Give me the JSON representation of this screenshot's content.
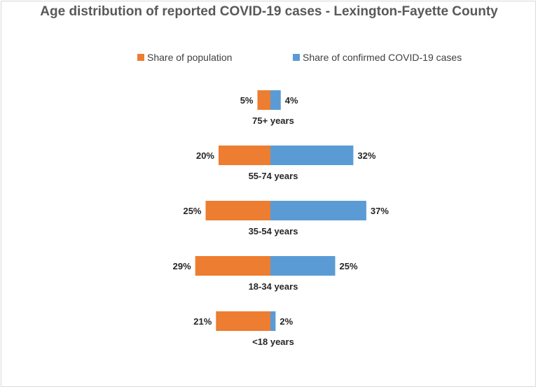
{
  "chart_data": {
    "type": "bar",
    "orientation": "horizontal-diverging",
    "title": "Age distribution of reported COVID-19 cases -  Lexington-Fayette County",
    "categories": [
      "75+ years",
      "55-74 years",
      "35-54 years",
      "18-34 years",
      "<18 years"
    ],
    "series": [
      {
        "name": "Share of population",
        "values": [
          5,
          20,
          25,
          29,
          21
        ],
        "labels": [
          "5%",
          "20%",
          "25%",
          "29%",
          "21%"
        ],
        "color": "#ed7d31"
      },
      {
        "name": "Share of confirmed COVID-19 cases",
        "values": [
          4,
          32,
          37,
          25,
          2
        ],
        "labels": [
          "4%",
          "32%",
          "37%",
          "25%",
          "2%"
        ],
        "color": "#5b9bd5"
      }
    ],
    "legend": "top",
    "grid": false
  }
}
